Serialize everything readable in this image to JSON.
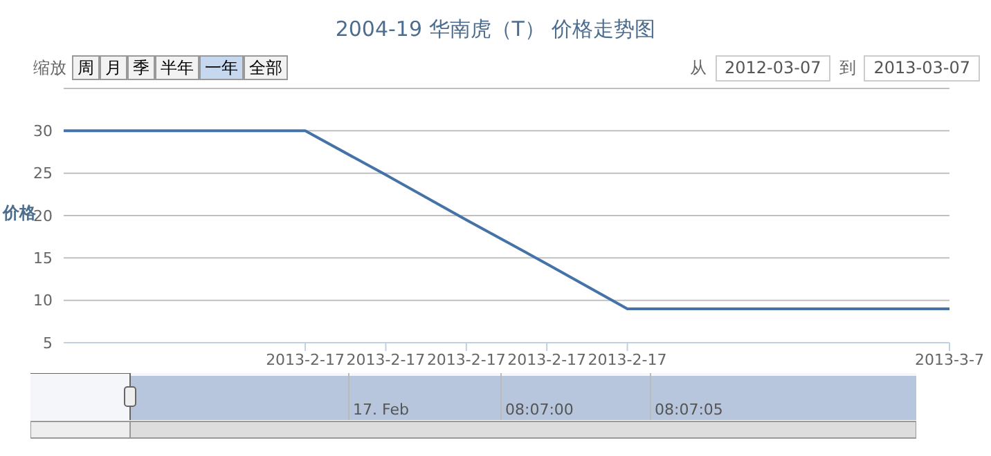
{
  "chart_data": {
    "type": "line",
    "title": "2004-19 华南虎（T） 价格走势图",
    "ylabel": "价格",
    "categories": [
      null,
      null,
      null,
      "2013-2-17",
      "2013-2-17",
      "2013-2-17",
      "2013-2-17",
      "2013-2-17",
      null,
      null,
      null,
      "2013-3-7"
    ],
    "series": [
      {
        "color": "#4572a7",
        "values": [
          30,
          30,
          30,
          30,
          24.8,
          19.5,
          14.3,
          9,
          9,
          9,
          9,
          9
        ]
      }
    ],
    "ylim": [
      5,
      35
    ],
    "yticks": [
      5,
      10,
      15,
      20,
      25,
      30,
      {
        "value": 35,
        "label": null
      }
    ],
    "grid": "y",
    "marker": "none",
    "line_style": "solid",
    "annotations": [
      "缩放",
      "周",
      "月",
      "季",
      "半年",
      "一年",
      "全部",
      "从",
      "2012-03-07",
      "到",
      "2013-03-07",
      "17. Feb",
      "08:07:00",
      "08:07:05"
    ]
  }
}
